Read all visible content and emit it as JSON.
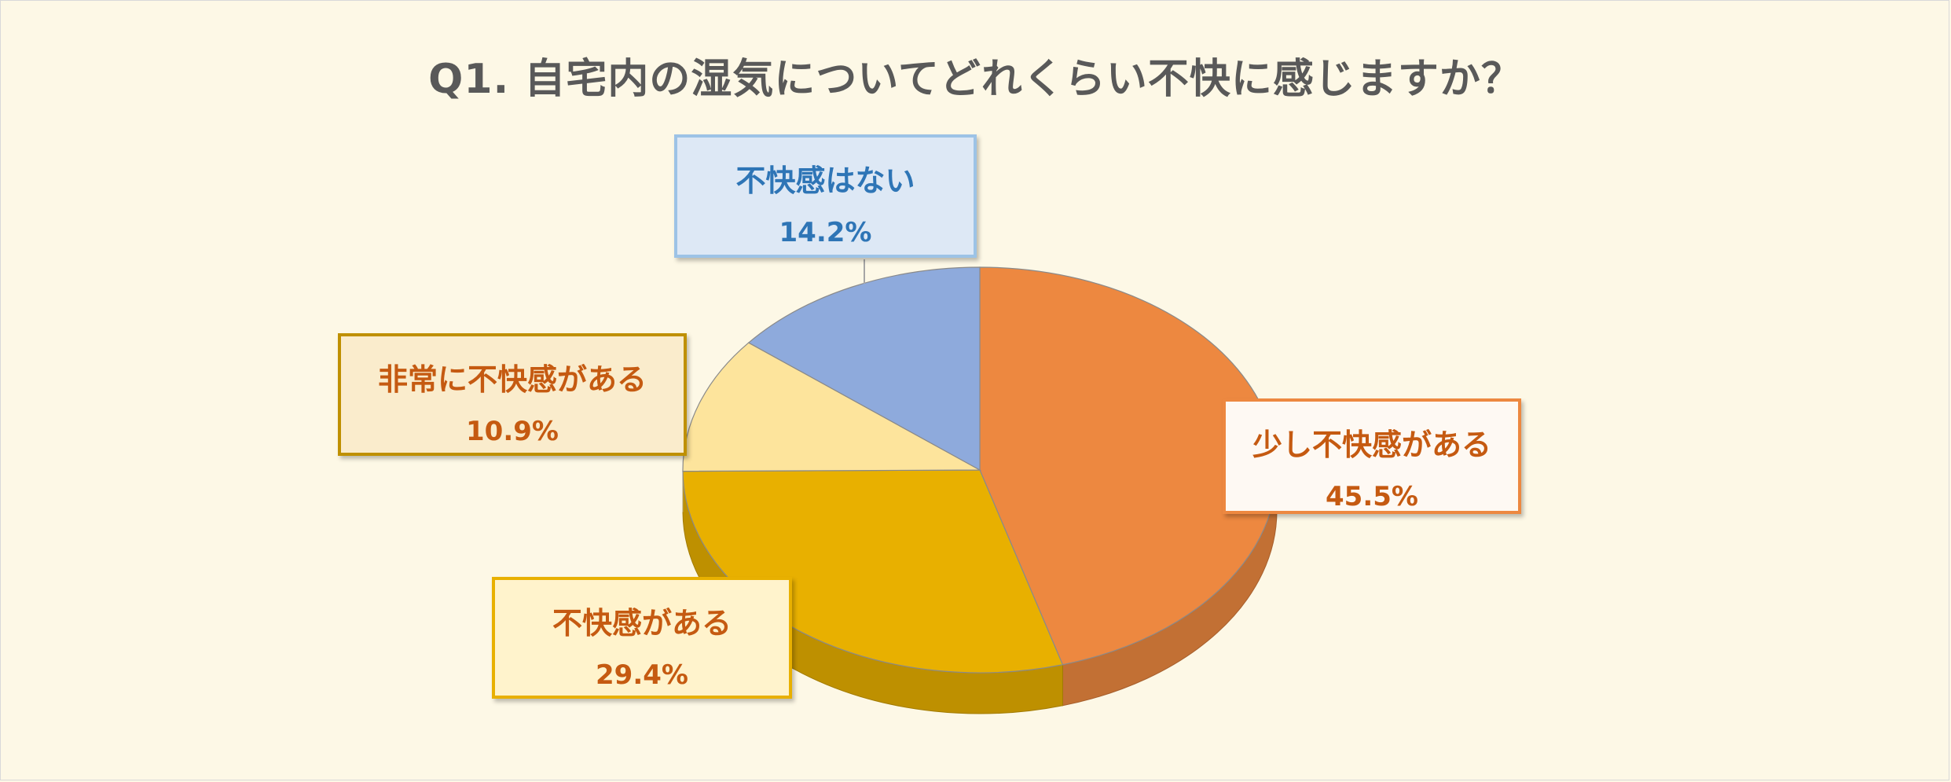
{
  "chart_data": {
    "type": "pie",
    "title": "Q1. 自宅内の湿気についてどれくらい不快に感じますか？",
    "slices": [
      {
        "label": "少し不快感がある",
        "value": 45.5,
        "value_label": "45.5%",
        "color": "#ed8840"
      },
      {
        "label": "不快感がある",
        "value": 29.4,
        "value_label": "29.4%",
        "color": "#e8b000"
      },
      {
        "label": "非常に不快感がある",
        "value": 10.9,
        "value_label": "10.9%",
        "color": "#fde49c"
      },
      {
        "label": "不快感はない",
        "value": 14.2,
        "value_label": "14.2%",
        "color": "#8eaadc"
      }
    ],
    "start_angle": "12 o'clock",
    "direction": "clockwise",
    "legend": "none",
    "style": "3d"
  }
}
